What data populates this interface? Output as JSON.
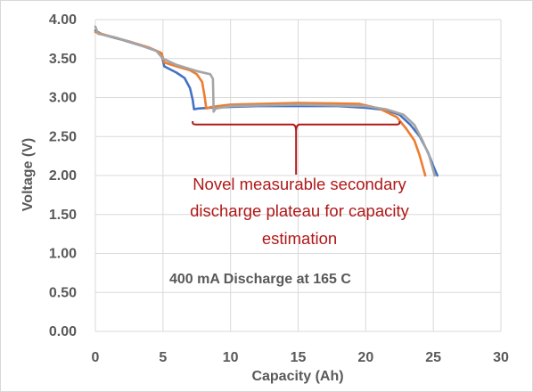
{
  "chart_data": {
    "type": "line",
    "title": "",
    "xlabel": "Capacity (Ah)",
    "ylabel": "Voltage (V)",
    "xlim": [
      0,
      30
    ],
    "ylim": [
      0,
      4
    ],
    "x_ticks": [
      "0",
      "5",
      "10",
      "15",
      "20",
      "25",
      "30"
    ],
    "y_ticks": [
      "0.00",
      "0.50",
      "1.00",
      "1.50",
      "2.00",
      "2.50",
      "3.00",
      "3.50",
      "4.00"
    ],
    "grid": true,
    "legend": "none",
    "series": [
      {
        "color": "#4472c4",
        "points": [
          [
            0,
            3.86
          ],
          [
            0.5,
            3.81
          ],
          [
            2,
            3.74
          ],
          [
            3.5,
            3.66
          ],
          [
            4.5,
            3.6
          ],
          [
            4.9,
            3.55
          ],
          [
            5.1,
            3.4
          ],
          [
            6,
            3.32
          ],
          [
            6.6,
            3.25
          ],
          [
            7,
            3.12
          ],
          [
            7.2,
            2.97
          ],
          [
            7.3,
            2.85
          ],
          [
            7.6,
            2.86
          ],
          [
            8.5,
            2.87
          ],
          [
            10,
            2.88
          ],
          [
            12,
            2.89
          ],
          [
            15,
            2.89
          ],
          [
            18,
            2.89
          ],
          [
            20,
            2.87
          ],
          [
            21.5,
            2.84
          ],
          [
            22.5,
            2.78
          ],
          [
            23.3,
            2.65
          ],
          [
            24,
            2.5
          ],
          [
            24.6,
            2.3
          ],
          [
            25,
            2.12
          ],
          [
            25.3,
            2.0
          ]
        ]
      },
      {
        "color": "#ed7d31",
        "points": [
          [
            0,
            3.84
          ],
          [
            1,
            3.79
          ],
          [
            2.5,
            3.72
          ],
          [
            4,
            3.64
          ],
          [
            4.9,
            3.57
          ],
          [
            5.1,
            3.45
          ],
          [
            6,
            3.4
          ],
          [
            7,
            3.35
          ],
          [
            7.5,
            3.3
          ],
          [
            7.9,
            3.2
          ],
          [
            8.1,
            3.0
          ],
          [
            8.2,
            2.86
          ],
          [
            8.6,
            2.88
          ],
          [
            10,
            2.91
          ],
          [
            15,
            2.93
          ],
          [
            19.5,
            2.92
          ],
          [
            21,
            2.86
          ],
          [
            22.3,
            2.75
          ],
          [
            23,
            2.6
          ],
          [
            23.6,
            2.45
          ],
          [
            24,
            2.25
          ],
          [
            24.4,
            2.0
          ]
        ]
      },
      {
        "color": "#a5a5a5",
        "points": [
          [
            0,
            3.91
          ],
          [
            0.2,
            3.82
          ],
          [
            1.5,
            3.77
          ],
          [
            3,
            3.69
          ],
          [
            4.5,
            3.6
          ],
          [
            5,
            3.5
          ],
          [
            6,
            3.42
          ],
          [
            7.5,
            3.34
          ],
          [
            8.5,
            3.3
          ],
          [
            8.7,
            3.24
          ],
          [
            8.75,
            2.82
          ],
          [
            8.9,
            2.86
          ],
          [
            10,
            2.89
          ],
          [
            15,
            2.91
          ],
          [
            20,
            2.89
          ],
          [
            21.5,
            2.85
          ],
          [
            22.8,
            2.78
          ],
          [
            23.6,
            2.65
          ],
          [
            24.2,
            2.45
          ],
          [
            24.7,
            2.25
          ],
          [
            25.1,
            2.0
          ]
        ]
      }
    ],
    "annotations": {
      "bracket_x": [
        7.2,
        22.5
      ],
      "bracket_y": 2.7,
      "plateau_label_lines": [
        "Novel measurable secondary",
        "discharge plateau for capacity",
        "estimation"
      ],
      "condition_label": "400 mA Discharge at 165 C"
    }
  }
}
